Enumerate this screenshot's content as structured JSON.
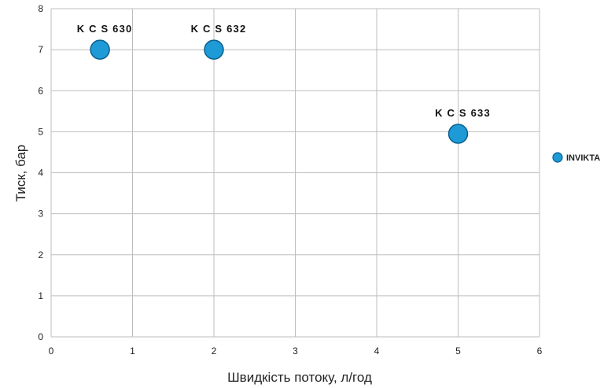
{
  "chart_data": {
    "type": "scatter",
    "xlabel": "Швидкість потоку, л/год",
    "ylabel": "Тиск, бар",
    "xlim": [
      0,
      6
    ],
    "ylim": [
      0,
      8
    ],
    "x_ticks": [
      "0",
      "1",
      "2",
      "3",
      "4",
      "5",
      "6"
    ],
    "y_ticks": [
      "0",
      "1",
      "2",
      "3",
      "4",
      "5",
      "6",
      "7",
      "8"
    ],
    "grid": true,
    "legend_position": "right",
    "series": [
      {
        "name": "INVIKTA",
        "color": "#1e9ad6",
        "points": [
          {
            "x": 0.6,
            "y": 7.0,
            "label": "K C S 630"
          },
          {
            "x": 2.0,
            "y": 7.0,
            "label": "K C S 632"
          },
          {
            "x": 5.0,
            "y": 4.95,
            "label": "K C S 633"
          }
        ]
      }
    ]
  }
}
